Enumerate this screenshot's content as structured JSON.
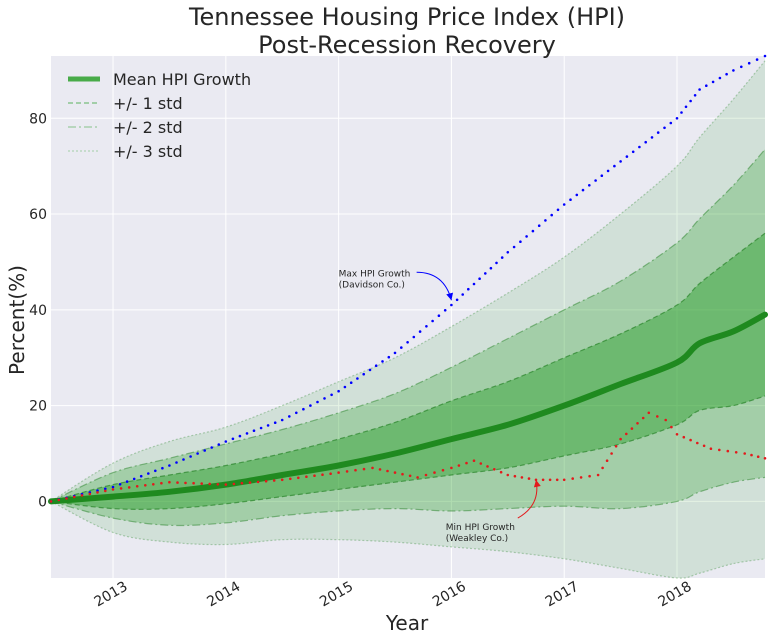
{
  "chart_data": {
    "type": "line",
    "title": "Tennessee Housing Price Index (HPI)",
    "subtitle": "Post-Recession Recovery",
    "xlabel": "Year",
    "ylabel": "Percent(%)",
    "xlim": [
      2012.45,
      2018.78
    ],
    "ylim": [
      -16,
      93
    ],
    "x_ticks": [
      2013,
      2014,
      2015,
      2016,
      2017,
      2018
    ],
    "x_tick_labels": [
      "2013",
      "2014",
      "2015",
      "2016",
      "2017",
      "2018"
    ],
    "y_ticks": [
      0,
      20,
      40,
      60,
      80
    ],
    "y_tick_labels": [
      "0",
      "20",
      "40",
      "60",
      "80"
    ],
    "grid": true,
    "legend_position": "top-left",
    "legend": [
      "Mean HPI Growth",
      "+/- 1 std",
      "+/- 2 std",
      "+/- 3 std"
    ],
    "x": [
      2012.45,
      2013.0,
      2013.5,
      2014.0,
      2014.5,
      2015.0,
      2015.5,
      2016.0,
      2016.5,
      2017.0,
      2017.5,
      2018.0,
      2018.2,
      2018.5,
      2018.78
    ],
    "series": [
      {
        "name": "Mean HPI Growth",
        "style": "thick-line",
        "color": "#2ca02c",
        "values": [
          0,
          1,
          2,
          3.5,
          5.5,
          7.5,
          10,
          13,
          16,
          20,
          24.5,
          29,
          33,
          35.5,
          39
        ]
      },
      {
        "name": "+/- 1 std",
        "style": "band",
        "color": "#2ca02c",
        "upper": [
          0,
          3.5,
          5.5,
          7.5,
          10,
          13,
          16.5,
          21,
          25,
          30,
          35,
          41,
          45.5,
          51,
          56
        ],
        "lower": [
          0,
          -1.5,
          -1.5,
          -0.5,
          1,
          2.5,
          4,
          5.5,
          7,
          9.5,
          12,
          16,
          19,
          20,
          22
        ]
      },
      {
        "name": "+/- 2 std",
        "style": "band",
        "color": "#2ca02c",
        "upper": [
          0,
          6,
          9,
          12,
          15,
          18.5,
          22.5,
          28,
          34,
          40,
          46,
          54,
          59,
          66,
          73.5
        ],
        "lower": [
          0,
          -3.5,
          -5,
          -4.5,
          -3,
          -2,
          -1.5,
          -2,
          -1.5,
          -1,
          -1.5,
          0,
          2,
          4,
          5
        ]
      },
      {
        "name": "+/- 3 std",
        "style": "band",
        "color": "#2ca02c",
        "upper": [
          0,
          8,
          12.5,
          15.5,
          20,
          25,
          30,
          36.5,
          43.5,
          51,
          60,
          70,
          76,
          84,
          92
        ],
        "lower": [
          0,
          -6.5,
          -8.5,
          -9,
          -8,
          -8,
          -8.5,
          -9.5,
          -10.5,
          -12,
          -14,
          -16,
          -15,
          -13,
          -12
        ]
      },
      {
        "name": "Max HPI Growth (Davidson Co.)",
        "style": "dotted",
        "color": "#0000ff",
        "x": [
          2012.45,
          2013.0,
          2013.5,
          2014.0,
          2014.5,
          2015.0,
          2015.5,
          2016.0,
          2016.5,
          2017.0,
          2017.5,
          2018.0,
          2018.2,
          2018.5,
          2018.78
        ],
        "values": [
          0,
          3,
          7.5,
          12.5,
          17,
          23,
          31,
          41,
          52,
          62,
          71,
          80,
          86,
          90,
          93
        ]
      },
      {
        "name": "Min HPI Growth (Weakley Co.)",
        "style": "dotted",
        "color": "#e31a1c",
        "x": [
          2012.45,
          2013.0,
          2013.5,
          2014.0,
          2014.5,
          2015.0,
          2015.3,
          2015.7,
          2016.0,
          2016.2,
          2016.5,
          2016.75,
          2017.0,
          2017.3,
          2017.5,
          2017.75,
          2017.9,
          2018.0,
          2018.3,
          2018.6,
          2018.78
        ],
        "values": [
          0,
          2.5,
          4,
          3.5,
          4.5,
          6,
          7,
          5,
          7,
          8.5,
          5.5,
          4.5,
          4.5,
          5.5,
          13,
          18.5,
          17,
          14,
          11,
          10,
          9
        ]
      }
    ],
    "annotations": [
      {
        "line1": "Max HPI Growth",
        "line2": "(Davidson Co.)",
        "text_at": [
          2015.0,
          47
        ],
        "arrow_to": [
          2016.0,
          42
        ],
        "arrow_color": "#0000ff"
      },
      {
        "line1": "Min HPI Growth",
        "line2": "(Weakley Co.)",
        "text_at": [
          2015.95,
          -6
        ],
        "arrow_to": [
          2016.75,
          4.5
        ],
        "arrow_color": "#e31a1c"
      }
    ]
  }
}
